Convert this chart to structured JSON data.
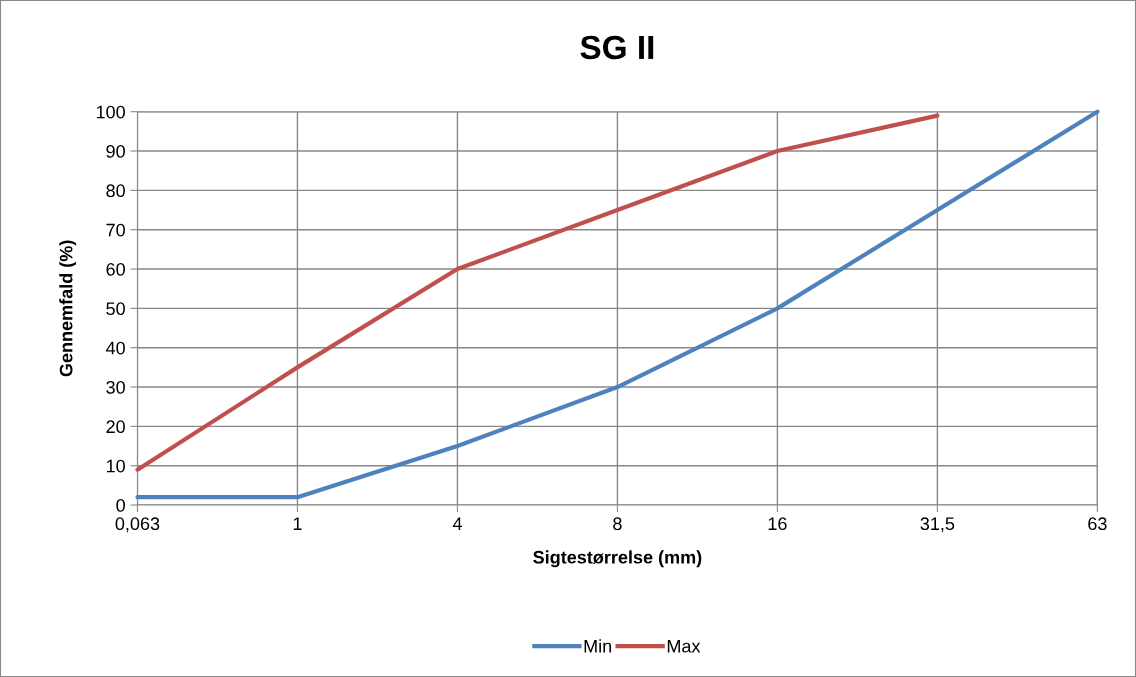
{
  "chart_data": {
    "type": "line",
    "title": "SG II",
    "xlabel": "Sigtestørrelse (mm)",
    "ylabel": "Gennemfald (%)",
    "categories": [
      "0,063",
      "1",
      "4",
      "8",
      "16",
      "31,5",
      "63"
    ],
    "series": [
      {
        "name": "Min",
        "color": "#4f81bd",
        "values": [
          2,
          2,
          15,
          30,
          50,
          75,
          100
        ]
      },
      {
        "name": "Max",
        "color": "#c0504d",
        "values": [
          9,
          35,
          60,
          75,
          90,
          99,
          null
        ]
      }
    ],
    "ylim": [
      0,
      100
    ],
    "yticks": [
      0,
      10,
      20,
      30,
      40,
      50,
      60,
      70,
      80,
      90,
      100
    ],
    "grid": true,
    "legend": "bottom",
    "marker": "none",
    "line_style": "solid"
  }
}
